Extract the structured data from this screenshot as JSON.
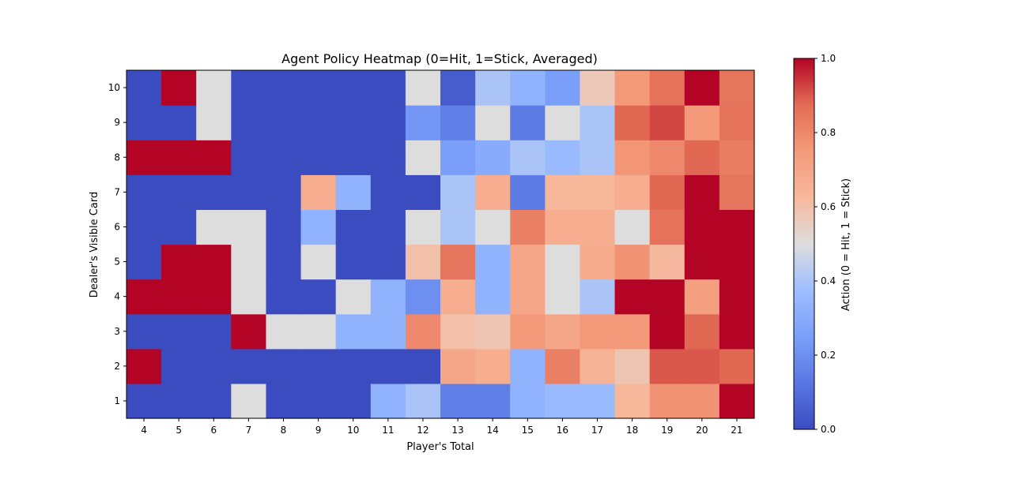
{
  "chart_data": {
    "type": "heatmap",
    "title": "Agent Policy Heatmap (0=Hit, 1=Stick, Averaged)",
    "xlabel": "Player's Total",
    "ylabel": "Dealer's Visible Card",
    "x": [
      4,
      5,
      6,
      7,
      8,
      9,
      10,
      11,
      12,
      13,
      14,
      15,
      16,
      17,
      18,
      19,
      20,
      21
    ],
    "y": [
      1,
      2,
      3,
      4,
      5,
      6,
      7,
      8,
      9,
      10
    ],
    "values": [
      [
        0,
        0,
        0,
        0.5,
        0,
        0,
        0,
        0.33,
        0.4,
        0.15,
        0.15,
        0.33,
        0.36,
        0.36,
        0.63,
        0.77,
        0.77,
        1
      ],
      [
        1,
        0,
        0,
        0,
        0,
        0,
        0,
        0,
        0,
        0.7,
        0.67,
        0.33,
        0.82,
        0.65,
        0.58,
        0.9,
        0.9,
        0.88
      ],
      [
        0,
        0,
        0,
        1,
        0.5,
        0.5,
        0.33,
        0.33,
        0.8,
        0.6,
        0.58,
        0.75,
        0.7,
        0.75,
        0.75,
        1,
        0.88,
        1
      ],
      [
        1,
        1,
        1,
        0.5,
        0,
        0,
        0.5,
        0.33,
        0.2,
        0.67,
        0.33,
        0.7,
        0.5,
        0.4,
        1,
        1,
        0.73,
        1
      ],
      [
        0,
        1,
        1,
        0.5,
        0,
        0.5,
        0,
        0,
        0.6,
        0.85,
        0.33,
        0.7,
        0.5,
        0.68,
        0.77,
        0.62,
        1,
        1
      ],
      [
        0,
        0,
        0.5,
        0.5,
        0,
        0.33,
        0,
        0,
        0.5,
        0.4,
        0.5,
        0.82,
        0.67,
        0.67,
        0.5,
        0.86,
        1,
        1
      ],
      [
        0,
        0,
        0,
        0,
        0,
        0.67,
        0.33,
        0,
        0,
        0.4,
        0.67,
        0.14,
        0.63,
        0.63,
        0.67,
        0.88,
        1,
        0.85
      ],
      [
        1,
        1,
        1,
        0,
        0,
        0,
        0,
        0,
        0.5,
        0.25,
        0.3,
        0.4,
        0.36,
        0.4,
        0.76,
        0.8,
        0.88,
        0.83
      ],
      [
        0,
        0,
        0.5,
        0,
        0,
        0,
        0,
        0,
        0.22,
        0.15,
        0.5,
        0.14,
        0.5,
        0.4,
        0.88,
        0.92,
        0.75,
        0.86
      ],
      [
        0,
        1,
        0.5,
        0,
        0,
        0,
        0,
        0,
        0.5,
        0.05,
        0.4,
        0.33,
        0.25,
        0.57,
        0.75,
        0.86,
        1,
        0.85
      ]
    ],
    "vmin": 0,
    "vmax": 1,
    "colormap": "coolwarm",
    "colorbar": {
      "label": "Action (0 = Hit, 1 = Stick)",
      "ticks": [
        "0.0",
        "0.2",
        "0.4",
        "0.6",
        "0.8",
        "1.0"
      ]
    },
    "colors": {
      "low": "#3b4cc0",
      "mid": "#dddddd",
      "high": "#b40426"
    }
  }
}
